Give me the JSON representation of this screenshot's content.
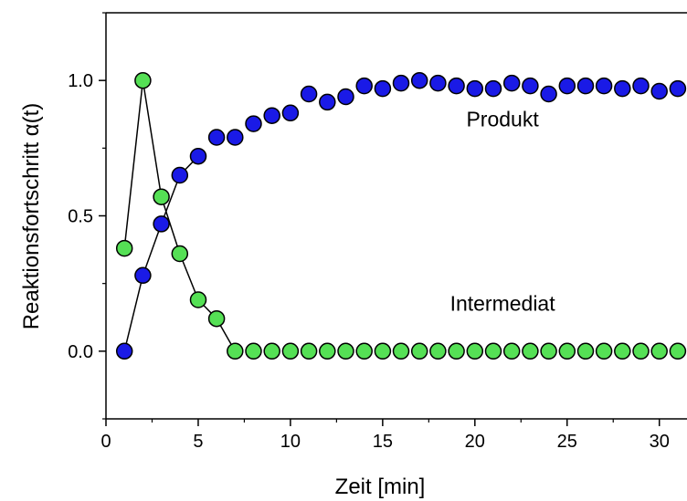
{
  "chart_data": {
    "type": "scatter",
    "title": "",
    "xlabel": "Zeit [min]",
    "ylabel": "Reaktionsfortschritt α(t)",
    "xlim": [
      0,
      31.5
    ],
    "ylim": [
      -0.25,
      1.25
    ],
    "x_ticks": [
      0,
      5,
      10,
      15,
      20,
      25,
      30
    ],
    "x_tick_labels": [
      "0",
      "5",
      "10",
      "15",
      "20",
      "25",
      "30"
    ],
    "y_ticks": [
      0.0,
      0.5,
      1.0
    ],
    "y_tick_labels": [
      "0.0",
      "0.5",
      "1.0"
    ],
    "grid": false,
    "annotations": [
      {
        "text": "Produkt",
        "x": 21.5,
        "y": 0.83
      },
      {
        "text": "Intermediat",
        "x": 21.5,
        "y": 0.15
      }
    ],
    "series": [
      {
        "color": "#1a1ae6",
        "connected_points": 5,
        "x": [
          1,
          2,
          3,
          4,
          5,
          6,
          7,
          8,
          9,
          10,
          11,
          12,
          13,
          14,
          15,
          16,
          17,
          18,
          19,
          20,
          21,
          22,
          23,
          24,
          25,
          26,
          27,
          28,
          29,
          30,
          31
        ],
        "y": [
          0.0,
          0.28,
          0.47,
          0.65,
          0.72,
          0.79,
          0.79,
          0.84,
          0.87,
          0.88,
          0.95,
          0.92,
          0.94,
          0.98,
          0.97,
          0.99,
          1.0,
          0.99,
          0.98,
          0.97,
          0.97,
          0.99,
          0.98,
          0.95,
          0.98,
          0.98,
          0.98,
          0.97,
          0.98,
          0.96,
          0.97
        ]
      },
      {
        "color": "#55e055",
        "connected_points": 7,
        "x": [
          1,
          2,
          3,
          4,
          5,
          6,
          7,
          8,
          9,
          10,
          11,
          12,
          13,
          14,
          15,
          16,
          17,
          18,
          19,
          20,
          21,
          22,
          23,
          24,
          25,
          26,
          27,
          28,
          29,
          30,
          31
        ],
        "y": [
          0.38,
          1.0,
          0.57,
          0.36,
          0.19,
          0.12,
          0.0,
          0.0,
          0.0,
          0.0,
          0.0,
          0.0,
          0.0,
          0.0,
          0.0,
          0.0,
          0.0,
          0.0,
          0.0,
          0.0,
          0.0,
          0.0,
          0.0,
          0.0,
          0.0,
          0.0,
          0.0,
          0.0,
          0.0,
          0.0,
          0.0
        ]
      }
    ]
  }
}
